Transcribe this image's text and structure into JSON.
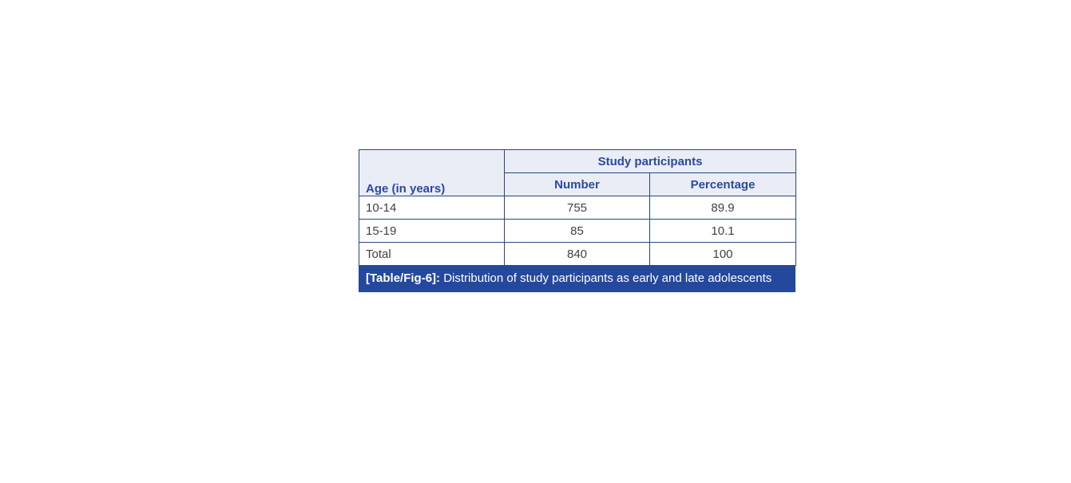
{
  "table": {
    "header": {
      "group_header": "Study participants",
      "col_age": "Age (in years)",
      "col_number": "Number",
      "col_percentage": "Percentage"
    },
    "rows": [
      {
        "age": "10-14",
        "number": "755",
        "percentage": "89.9"
      },
      {
        "age": "15-19",
        "number": "85",
        "percentage": "10.1"
      },
      {
        "age": "Total",
        "number": "840",
        "percentage": "100"
      }
    ],
    "caption": {
      "label": "[Table/Fig-6]:",
      "text": " Distribution of study participants as early and late adolescents"
    },
    "colors": {
      "header_bg": "#eaedf6",
      "header_text": "#2b4a9e",
      "border": "#2a4580",
      "caption_bg": "#24499c",
      "caption_text": "#ffffff",
      "body_text": "#404040",
      "page_bg": "#ffffff"
    }
  }
}
